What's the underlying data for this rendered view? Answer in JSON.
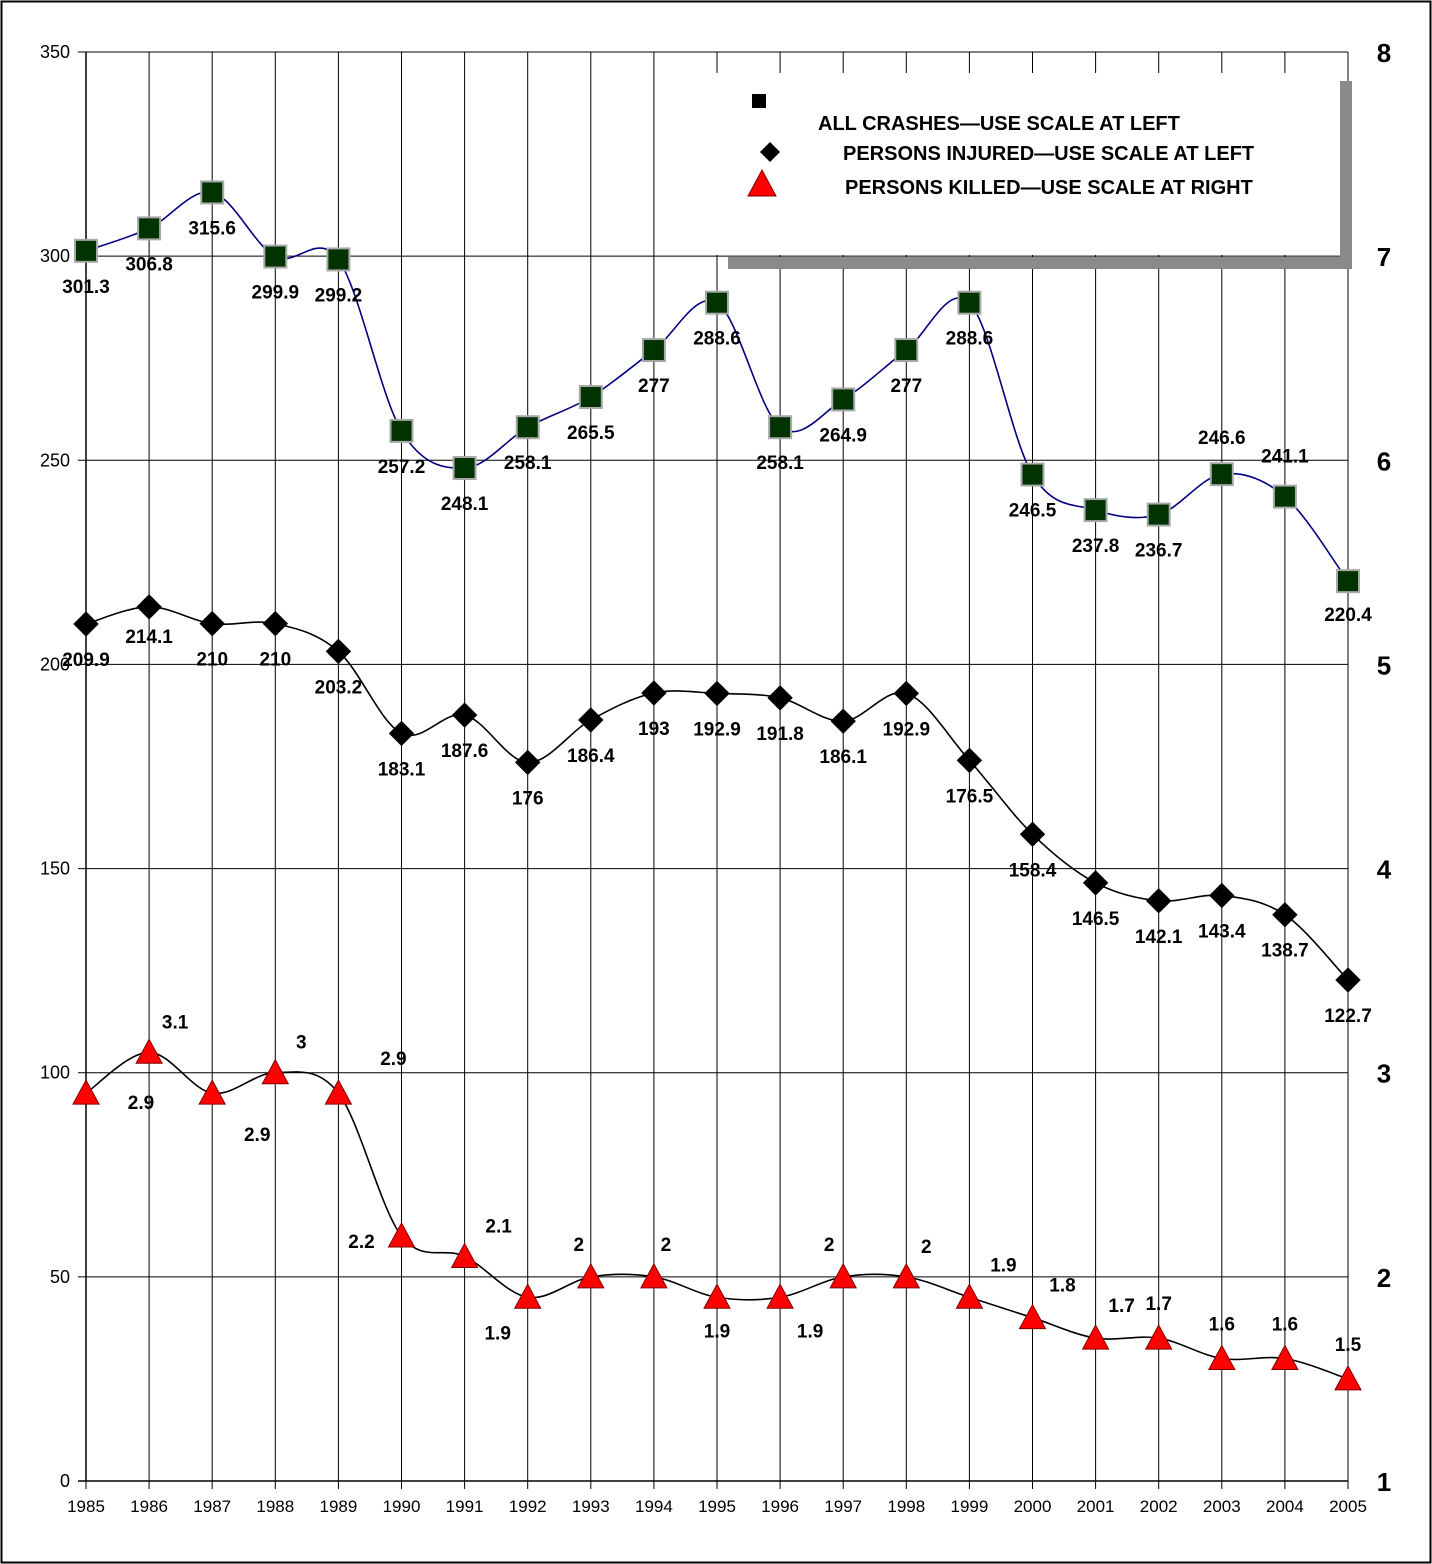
{
  "chart_data": {
    "type": "line",
    "categories": [
      "1985",
      "1986",
      "1987",
      "1988",
      "1989",
      "1990",
      "1991",
      "1992",
      "1993",
      "1994",
      "1995",
      "1996",
      "1997",
      "1998",
      "1999",
      "2000",
      "2001",
      "2002",
      "2003",
      "2004",
      "2005"
    ],
    "left_axis": {
      "range": [
        0,
        350
      ],
      "ticks": [
        "0",
        "50",
        "100",
        "150",
        "200",
        "250",
        "300",
        "350"
      ]
    },
    "right_axis": {
      "range": [
        1,
        8
      ],
      "ticks": [
        "1",
        "2",
        "3",
        "4",
        "5",
        "6",
        "7",
        "8"
      ]
    },
    "grid": true,
    "legend_position": "top-right",
    "series": [
      {
        "name": "ALL CRASHES—USE SCALE AT LEFT",
        "axis": "left",
        "marker": "square",
        "color": "#003300",
        "line_color": "#000080",
        "values": [
          301.3,
          306.8,
          315.6,
          299.9,
          299.2,
          257.2,
          248.1,
          258.1,
          265.5,
          277,
          288.6,
          258.1,
          264.9,
          277,
          288.6,
          246.5,
          237.8,
          236.7,
          246.6,
          241.1,
          220.4
        ],
        "labels": [
          "301.3",
          "306.8",
          "315.6",
          "299.9",
          "299.2",
          "257.2",
          "248.1",
          "258.1",
          "265.5",
          "277",
          "288.6",
          "258.1",
          "264.9",
          "277",
          "288.6",
          "246.5",
          "237.8",
          "236.7",
          "246.6",
          "241.1",
          "220.4"
        ]
      },
      {
        "name": "PERSONS INJURED—USE SCALE AT LEFT",
        "axis": "left",
        "marker": "diamond",
        "color": "#000000",
        "line_color": "#000000",
        "values": [
          209.9,
          214.1,
          210,
          210,
          203.2,
          183.1,
          187.6,
          176,
          186.4,
          193,
          192.9,
          191.8,
          186.1,
          192.9,
          176.5,
          158.4,
          146.5,
          142.1,
          143.4,
          138.7,
          122.7
        ],
        "labels": [
          "209.9",
          "214.1",
          "210",
          "210",
          "203.2",
          "183.1",
          "187.6",
          "176",
          "186.4",
          "193",
          "192.9",
          "191.8",
          "186.1",
          "192.9",
          "176.5",
          "158.4",
          "146.5",
          "142.1",
          "143.4",
          "138.7",
          "122.7"
        ]
      },
      {
        "name": "PERSONS KILLED—USE SCALE AT RIGHT",
        "axis": "right",
        "marker": "triangle",
        "color": "#ff0000",
        "line_color": "#000000",
        "values": [
          2.9,
          3.1,
          2.9,
          3.0,
          2.9,
          2.2,
          2.1,
          1.9,
          2.0,
          2.0,
          1.9,
          1.9,
          2.0,
          2.0,
          1.9,
          1.8,
          1.7,
          1.7,
          1.6,
          1.6,
          1.5
        ],
        "labels": [
          "2.9",
          "3.1",
          "2.9",
          "3",
          "2.9",
          "2.2",
          "2.1",
          "1.9",
          "2",
          "2",
          "1.9",
          "1.9",
          "2",
          "2",
          "1.9",
          "1.8",
          "1.7",
          "1.7",
          "1.6",
          "1.6",
          "1.5"
        ]
      }
    ]
  }
}
